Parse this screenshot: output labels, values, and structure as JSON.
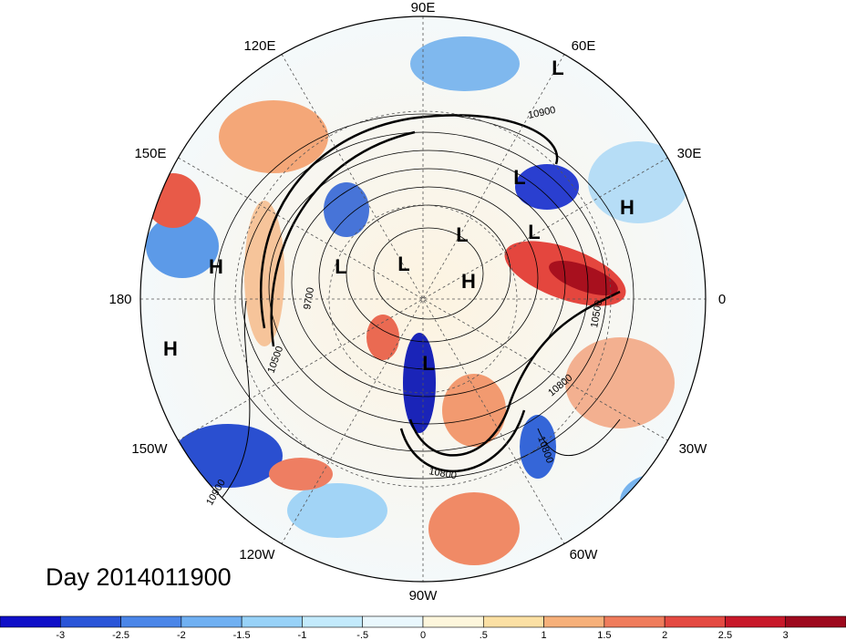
{
  "title": "Day 2014011900",
  "longitude_labels": [
    "90E",
    "60E",
    "30E",
    "0",
    "30W",
    "60W",
    "90W",
    "120W",
    "150W",
    "180",
    "150E",
    "120E"
  ],
  "pressure_centers": [
    {
      "label": "L",
      "lon_lat": "near 55E"
    },
    {
      "label": "L",
      "lon_lat": "Siberia"
    },
    {
      "label": "H",
      "lon_lat": "Middle East"
    },
    {
      "label": "L",
      "lon_lat": "Arctic"
    },
    {
      "label": "L",
      "lon_lat": "Barents"
    },
    {
      "label": "H",
      "lon_lat": "Greenland"
    },
    {
      "label": "L",
      "lon_lat": "East Siberia"
    },
    {
      "label": "L",
      "lon_lat": "Chukchi"
    },
    {
      "label": "H",
      "lon_lat": "Pacific"
    },
    {
      "label": "H",
      "lon_lat": "North Pacific"
    },
    {
      "label": "L",
      "lon_lat": "Hudson Bay"
    }
  ],
  "contour_labels": [
    "10900",
    "9700",
    "10500",
    "10800",
    "10800",
    "10900",
    "10800",
    "10500"
  ],
  "colorbar": {
    "ticks": [
      "-3",
      "-2.5",
      "-2",
      "-1.5",
      "-1",
      "-.5",
      "0",
      ".5",
      "1",
      "1.5",
      "2",
      "2.5",
      "3"
    ],
    "colors": [
      "#1010c8",
      "#2a55d8",
      "#4b86e8",
      "#70b0f2",
      "#98d2f8",
      "#c3eafc",
      "#e9f7fd",
      "#fdf6dc",
      "#fbe0a4",
      "#f6b07a",
      "#ef7c5c",
      "#e44a42",
      "#c8192a",
      "#9e0a1e"
    ]
  }
}
